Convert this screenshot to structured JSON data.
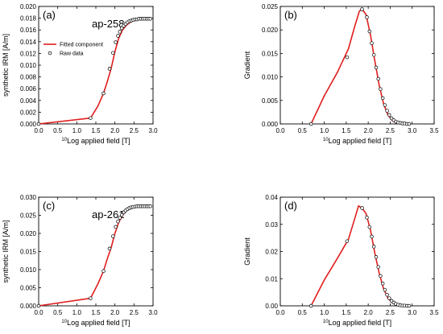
{
  "chart_data": [
    {
      "type": "scatter",
      "panel_label": "(a)",
      "annotation": "ap-258",
      "xlabel_sup": "10",
      "xlabel": "Log applied field [T]",
      "ylabel": "synthetic IRM [A/m]",
      "xlim": [
        0.0,
        3.0
      ],
      "ylim": [
        0.0,
        0.02
      ],
      "xticks": [
        "0.0",
        "0.5",
        "1.0",
        "1.5",
        "2.0",
        "2.5",
        "3.0"
      ],
      "yticks": [
        "0.000",
        "0.002",
        "0.004",
        "0.006",
        "0.008",
        "0.010",
        "0.012",
        "0.014",
        "0.016",
        "0.018",
        "0.020"
      ],
      "legend_position": "center-left",
      "legend": [
        "Fitted component",
        "Raw data"
      ],
      "series": [
        {
          "name": "Fitted component",
          "kind": "line",
          "color": "#e01e1e",
          "x": [
            0.0,
            1.36,
            1.55,
            1.7,
            1.8,
            1.9,
            2.0,
            2.1,
            2.2,
            2.3,
            2.4,
            2.5,
            2.6,
            2.75,
            2.95
          ],
          "y": [
            0.0,
            0.001,
            0.003,
            0.0052,
            0.0072,
            0.0094,
            0.0123,
            0.0146,
            0.016,
            0.0168,
            0.0173,
            0.0176,
            0.0178,
            0.0179,
            0.0179
          ]
        },
        {
          "name": "Raw data",
          "kind": "points",
          "color": "#000000",
          "x": [
            0.0,
            1.36,
            1.7,
            1.86,
            1.95,
            2.02,
            2.08,
            2.13,
            2.18,
            2.23,
            2.28,
            2.33,
            2.38,
            2.43,
            2.48,
            2.53,
            2.58,
            2.63,
            2.68,
            2.73,
            2.78,
            2.83,
            2.88,
            2.93
          ],
          "y": [
            0.0,
            0.001,
            0.0052,
            0.0094,
            0.0121,
            0.0139,
            0.015,
            0.0157,
            0.0163,
            0.0167,
            0.017,
            0.0173,
            0.0175,
            0.0176,
            0.0177,
            0.0178,
            0.0178,
            0.0179,
            0.0179,
            0.0179,
            0.0179,
            0.0179,
            0.0179,
            0.0179
          ]
        }
      ]
    },
    {
      "type": "line",
      "panel_label": "(b)",
      "xlabel_sup": "10",
      "xlabel": "Log applied field [T]",
      "ylabel": "Gradient",
      "xlim": [
        0.0,
        3.5
      ],
      "ylim": [
        0.0,
        0.025
      ],
      "xticks": [
        "0.0",
        "0.5",
        "1.0",
        "1.5",
        "2.0",
        "2.5",
        "3.0",
        "3.5"
      ],
      "yticks": [
        "0.000",
        "0.005",
        "0.010",
        "0.015",
        "0.020",
        "0.025"
      ],
      "series": [
        {
          "name": "Fitted component",
          "kind": "line",
          "color": "#e01e1e",
          "x": [
            0.7,
            1.0,
            1.3,
            1.55,
            1.7,
            1.8,
            1.86,
            1.95,
            2.05,
            2.15,
            2.25,
            2.35,
            2.45,
            2.55,
            2.65,
            2.75,
            2.85,
            2.95
          ],
          "y": [
            0.0,
            0.006,
            0.011,
            0.016,
            0.021,
            0.024,
            0.0244,
            0.0233,
            0.019,
            0.0135,
            0.0082,
            0.0043,
            0.0019,
            0.0007,
            0.0002,
            0.0001,
            0.0,
            0.0
          ]
        },
        {
          "name": "Raw data",
          "kind": "points",
          "color": "#000000",
          "x": [
            0.7,
            1.52,
            1.86,
            1.97,
            2.03,
            2.08,
            2.13,
            2.18,
            2.23,
            2.28,
            2.33,
            2.38,
            2.43,
            2.48,
            2.53,
            2.58,
            2.63,
            2.68,
            2.73,
            2.78,
            2.83,
            2.88,
            2.93
          ],
          "y": [
            0.0,
            0.0142,
            0.0244,
            0.0227,
            0.0197,
            0.0172,
            0.0147,
            0.012,
            0.0096,
            0.0074,
            0.0055,
            0.004,
            0.0028,
            0.0019,
            0.0012,
            0.0008,
            0.0005,
            0.0003,
            0.0002,
            0.0001,
            0.0001,
            0.0,
            0.0
          ]
        }
      ]
    },
    {
      "type": "scatter",
      "panel_label": "(c)",
      "annotation": "ap-261",
      "xlabel_sup": "10",
      "xlabel": "Log applied field [T]",
      "ylabel": "synthetic IRM [A/m]",
      "xlim": [
        0.0,
        3.0
      ],
      "ylim": [
        0.0,
        0.03
      ],
      "xticks": [
        "0.0",
        "0.5",
        "1.0",
        "1.5",
        "2.0",
        "2.5",
        "3.0"
      ],
      "yticks": [
        "0.000",
        "0.005",
        "0.010",
        "0.015",
        "0.020",
        "0.025",
        "0.030"
      ],
      "series": [
        {
          "name": "Fitted component",
          "kind": "line",
          "color": "#e01e1e",
          "x": [
            0.0,
            1.36,
            1.55,
            1.7,
            1.8,
            1.9,
            2.0,
            2.1,
            2.2,
            2.3,
            2.4,
            2.5,
            2.6,
            2.75,
            2.95
          ],
          "y": [
            0.0,
            0.0021,
            0.006,
            0.0096,
            0.013,
            0.016,
            0.02,
            0.0231,
            0.025,
            0.0262,
            0.0268,
            0.0272,
            0.0274,
            0.0275,
            0.0275
          ]
        },
        {
          "name": "Raw data",
          "kind": "points",
          "color": "#000000",
          "x": [
            0.0,
            1.36,
            1.7,
            1.86,
            1.95,
            2.02,
            2.08,
            2.13,
            2.18,
            2.23,
            2.28,
            2.33,
            2.38,
            2.43,
            2.48,
            2.53,
            2.58,
            2.63,
            2.68,
            2.73,
            2.78,
            2.83,
            2.88,
            2.93
          ],
          "y": [
            0.0,
            0.0021,
            0.0096,
            0.0158,
            0.0192,
            0.0218,
            0.0233,
            0.0243,
            0.0251,
            0.0258,
            0.0263,
            0.0267,
            0.027,
            0.0272,
            0.0273,
            0.0274,
            0.0275,
            0.0275,
            0.0275,
            0.0275,
            0.0275,
            0.0275,
            0.0275,
            0.0275
          ]
        }
      ]
    },
    {
      "type": "line",
      "panel_label": "(d)",
      "xlabel_sup": "10",
      "xlabel": "Log applied field [T]",
      "ylabel": "Gradient",
      "xlim": [
        0.0,
        3.5
      ],
      "ylim": [
        0.0,
        0.04
      ],
      "xticks": [
        "0.0",
        "0.5",
        "1.0",
        "1.5",
        "2.0",
        "2.5",
        "3.0",
        "3.5"
      ],
      "yticks": [
        "0.00",
        "0.01",
        "0.02",
        "0.03",
        "0.04"
      ],
      "series": [
        {
          "name": "Fitted component",
          "kind": "line",
          "color": "#e01e1e",
          "x": [
            0.7,
            1.0,
            1.3,
            1.55,
            1.7,
            1.78,
            1.86,
            1.95,
            2.05,
            2.15,
            2.25,
            2.35,
            2.45,
            2.55,
            2.65,
            2.75,
            2.85,
            2.95
          ],
          "y": [
            0.0,
            0.0095,
            0.0175,
            0.0245,
            0.0325,
            0.0368,
            0.036,
            0.034,
            0.028,
            0.0195,
            0.012,
            0.0063,
            0.0028,
            0.0011,
            0.0004,
            0.0001,
            0.0,
            0.0
          ]
        },
        {
          "name": "Raw data",
          "kind": "points",
          "color": "#000000",
          "x": [
            0.7,
            1.52,
            1.86,
            1.97,
            2.03,
            2.08,
            2.13,
            2.18,
            2.23,
            2.28,
            2.33,
            2.38,
            2.43,
            2.48,
            2.53,
            2.58,
            2.63,
            2.68,
            2.73,
            2.78,
            2.83,
            2.88,
            2.93
          ],
          "y": [
            0.0,
            0.0238,
            0.036,
            0.0325,
            0.029,
            0.0255,
            0.0218,
            0.018,
            0.0143,
            0.011,
            0.0082,
            0.0059,
            0.0041,
            0.0028,
            0.0018,
            0.0012,
            0.0007,
            0.0004,
            0.0002,
            0.0001,
            0.0001,
            0.0,
            0.0
          ]
        }
      ]
    }
  ]
}
